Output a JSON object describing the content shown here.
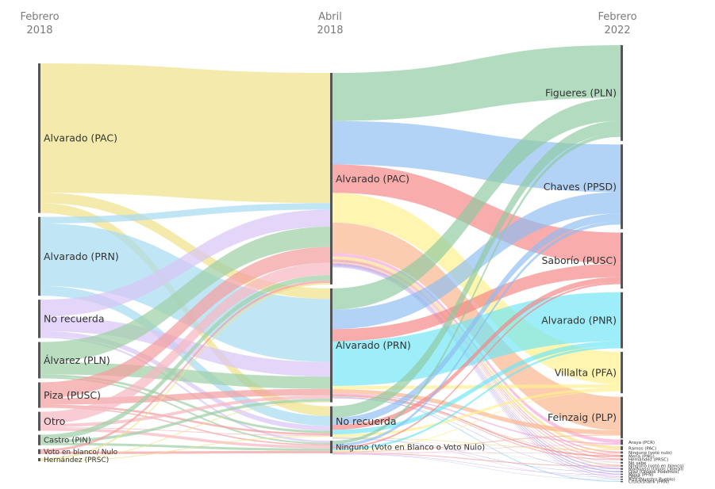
{
  "chart_data": {
    "type": "sankey",
    "title": "",
    "columns": [
      {
        "id": "c0",
        "title_line1": "Febrero",
        "title_line2": "2018"
      },
      {
        "id": "c1",
        "title_line1": "Abril",
        "title_line2": "2018"
      },
      {
        "id": "c2",
        "title_line1": "Febrero",
        "title_line2": "2022"
      }
    ],
    "nodes": [
      {
        "id": "a_pac",
        "col": 0,
        "label": "Alvarado (PAC)",
        "value": 37.0
      },
      {
        "id": "a_prn",
        "col": 0,
        "label": "Alvarado (PRN)",
        "value": 19.5
      },
      {
        "id": "a_norec",
        "col": 0,
        "label": "No recuerda",
        "value": 9.5
      },
      {
        "id": "a_pln",
        "col": 0,
        "label": "Álvarez (PLN)",
        "value": 9.0
      },
      {
        "id": "a_pusc",
        "col": 0,
        "label": "Piza (PUSC)",
        "value": 6.3
      },
      {
        "id": "a_otro",
        "col": 0,
        "label": "Otro",
        "value": 4.7
      },
      {
        "id": "a_pin",
        "col": 0,
        "label": "Castro (PIN)",
        "value": 2.6
      },
      {
        "id": "a_blanco",
        "col": 0,
        "label": "Voto en blanco/ Nulo",
        "value": 1.2
      },
      {
        "id": "a_prsc",
        "col": 0,
        "label": "Hernández (PRSC)",
        "value": 0.8
      },
      {
        "id": "b_pac",
        "col": 1,
        "label": "Alvarado (PAC)",
        "value": 52.0
      },
      {
        "id": "b_prn",
        "col": 1,
        "label": "Alvarado (PRN)",
        "value": 28.0
      },
      {
        "id": "b_norec",
        "col": 1,
        "label": "No recuerda",
        "value": 7.5
      },
      {
        "id": "b_ninguno",
        "col": 1,
        "label": "Ninguno (Voto en Blanco o Voto Nulo)",
        "value": 3.1
      },
      {
        "id": "c_pln",
        "col": 2,
        "label": "Figueres (PLN)",
        "value": 21.5
      },
      {
        "id": "c_ppsd",
        "col": 2,
        "label": "Chaves (PPSD)",
        "value": 19.0
      },
      {
        "id": "c_pusc",
        "col": 2,
        "label": "Saborío (PUSC)",
        "value": 12.6
      },
      {
        "id": "c_pnr",
        "col": 2,
        "label": "Alvarado (PNR)",
        "value": 12.6
      },
      {
        "id": "c_pfa",
        "col": 2,
        "label": "Villalta (PFA)",
        "value": 9.3
      },
      {
        "id": "c_plp",
        "col": 2,
        "label": "Feinzaig (PLP)",
        "value": 9.3
      },
      {
        "id": "c_pcr",
        "col": 2,
        "label": "Araya (PCR)",
        "value": 1.2
      },
      {
        "id": "c_pac",
        "col": 2,
        "label": "Ramos (PAC)",
        "value": 0.9
      },
      {
        "id": "c_nulo",
        "col": 2,
        "label": "Ninguno (votó nulo)",
        "value": 0.5
      },
      {
        "id": "c_png",
        "col": 2,
        "label": "Mena (PNG)",
        "value": 0.5
      },
      {
        "id": "c_prsc",
        "col": 2,
        "label": "Hernández (PRSC)",
        "value": 0.5
      },
      {
        "id": "c_nosabe",
        "col": 2,
        "label": "No sabe",
        "value": 0.4
      },
      {
        "id": "c_blanco",
        "col": 2,
        "label": "Ninguno (votó en blanco)",
        "value": 0.4
      },
      {
        "id": "c_pul",
        "col": 2,
        "label": "Malavassi (Unión Liberal)",
        "value": 0.4
      },
      {
        "id": "c_up",
        "col": 2,
        "label": "Díaz (Unidos Podemos)",
        "value": 0.3
      },
      {
        "id": "c_pfn",
        "col": 2,
        "label": "Moya (PFN)",
        "value": 0.3
      },
      {
        "id": "c_otros",
        "col": 2,
        "label": "Otros",
        "value": 0.3
      },
      {
        "id": "c_pnp",
        "col": 2,
        "label": "Piza (Nuestro Pueblo)",
        "value": 0.2
      },
      {
        "id": "c_prn",
        "col": 2,
        "label": "Cruickshank (PRN)",
        "value": 0.2
      }
    ],
    "links": [
      {
        "source": "a_pac",
        "target": "b_pac",
        "value": 32.0
      },
      {
        "source": "a_pac",
        "target": "b_prn",
        "value": 2.6
      },
      {
        "source": "a_pac",
        "target": "b_norec",
        "value": 2.4
      },
      {
        "source": "a_prn",
        "target": "b_pac",
        "value": 1.6
      },
      {
        "source": "a_prn",
        "target": "b_prn",
        "value": 15.5
      },
      {
        "source": "a_prn",
        "target": "b_norec",
        "value": 2.4
      },
      {
        "source": "a_norec",
        "target": "b_pac",
        "value": 4.2
      },
      {
        "source": "a_norec",
        "target": "b_prn",
        "value": 3.6
      },
      {
        "source": "a_norec",
        "target": "b_norec",
        "value": 1.2
      },
      {
        "source": "a_norec",
        "target": "b_ninguno",
        "value": 0.5
      },
      {
        "source": "a_pln",
        "target": "b_pac",
        "value": 5.0
      },
      {
        "source": "a_pln",
        "target": "b_prn",
        "value": 3.0
      },
      {
        "source": "a_pln",
        "target": "b_norec",
        "value": 0.6
      },
      {
        "source": "a_pln",
        "target": "b_ninguno",
        "value": 0.4
      },
      {
        "source": "a_pusc",
        "target": "b_pac",
        "value": 3.9
      },
      {
        "source": "a_pusc",
        "target": "b_prn",
        "value": 1.6
      },
      {
        "source": "a_pusc",
        "target": "b_norec",
        "value": 0.5
      },
      {
        "source": "a_pusc",
        "target": "b_ninguno",
        "value": 0.3
      },
      {
        "source": "a_otro",
        "target": "b_pac",
        "value": 3.0
      },
      {
        "source": "a_otro",
        "target": "b_prn",
        "value": 0.8
      },
      {
        "source": "a_otro",
        "target": "b_norec",
        "value": 0.2
      },
      {
        "source": "a_otro",
        "target": "b_ninguno",
        "value": 0.7
      },
      {
        "source": "a_pin",
        "target": "b_pac",
        "value": 1.3
      },
      {
        "source": "a_pin",
        "target": "b_prn",
        "value": 0.7
      },
      {
        "source": "a_pin",
        "target": "b_ninguno",
        "value": 0.6
      },
      {
        "source": "a_blanco",
        "target": "b_pac",
        "value": 0.6
      },
      {
        "source": "a_blanco",
        "target": "b_ninguno",
        "value": 0.6
      },
      {
        "source": "a_prsc",
        "target": "b_pac",
        "value": 0.4
      },
      {
        "source": "a_prsc",
        "target": "b_prn",
        "value": 0.2
      },
      {
        "source": "a_prsc",
        "target": "b_norec",
        "value": 0.2
      },
      {
        "source": "b_pac",
        "target": "c_pln",
        "value": 11.8
      },
      {
        "source": "b_pac",
        "target": "c_ppsd",
        "value": 10.7
      },
      {
        "source": "b_pac",
        "target": "c_pusc",
        "value": 7.0
      },
      {
        "source": "b_pac",
        "target": "c_pfa",
        "value": 7.3
      },
      {
        "source": "b_pac",
        "target": "c_plp",
        "value": 7.5
      },
      {
        "source": "b_pac",
        "target": "c_pcr",
        "value": 0.8
      },
      {
        "source": "b_pac",
        "target": "c_pac",
        "value": 0.7
      },
      {
        "source": "b_pac",
        "target": "c_nulo",
        "value": 0.3
      },
      {
        "source": "b_pac",
        "target": "c_png",
        "value": 0.2
      },
      {
        "source": "b_pac",
        "target": "c_prsc",
        "value": 0.2
      },
      {
        "source": "b_pac",
        "target": "c_nosabe",
        "value": 0.2
      },
      {
        "source": "b_pac",
        "target": "c_blanco",
        "value": 0.2
      },
      {
        "source": "b_pac",
        "target": "c_pul",
        "value": 0.2
      },
      {
        "source": "b_pac",
        "target": "c_up",
        "value": 0.2
      },
      {
        "source": "b_pac",
        "target": "c_pfn",
        "value": 0.2
      },
      {
        "source": "b_pac",
        "target": "c_otros",
        "value": 0.2
      },
      {
        "source": "b_pac",
        "target": "c_pnp",
        "value": 0.1
      },
      {
        "source": "b_prn",
        "target": "c_pln",
        "value": 5.2
      },
      {
        "source": "b_prn",
        "target": "c_ppsd",
        "value": 4.8
      },
      {
        "source": "b_prn",
        "target": "c_pusc",
        "value": 3.0
      },
      {
        "source": "b_prn",
        "target": "c_pnr",
        "value": 11.0
      },
      {
        "source": "b_prn",
        "target": "c_pfa",
        "value": 0.8
      },
      {
        "source": "b_prn",
        "target": "c_plp",
        "value": 1.0
      },
      {
        "source": "b_prn",
        "target": "c_pcr",
        "value": 0.3
      },
      {
        "source": "b_prn",
        "target": "c_png",
        "value": 0.3
      },
      {
        "source": "b_prn",
        "target": "c_prsc",
        "value": 0.2
      },
      {
        "source": "b_prn",
        "target": "c_prn",
        "value": 0.2
      },
      {
        "source": "b_prn",
        "target": "c_nulo",
        "value": 0.1
      },
      {
        "source": "b_prn",
        "target": "c_pul",
        "value": 0.1
      },
      {
        "source": "b_norec",
        "target": "c_pln",
        "value": 2.8
      },
      {
        "source": "b_norec",
        "target": "c_ppsd",
        "value": 1.8
      },
      {
        "source": "b_norec",
        "target": "c_pusc",
        "value": 1.2
      },
      {
        "source": "b_norec",
        "target": "c_pnr",
        "value": 1.1
      },
      {
        "source": "b_norec",
        "target": "c_pfa",
        "value": 0.6
      },
      {
        "source": "b_norec",
        "target": "c_nosabe",
        "value": 0.1
      },
      {
        "source": "b_norec",
        "target": "c_pac",
        "value": 0.2
      },
      {
        "source": "b_norec",
        "target": "c_up",
        "value": 0.1
      },
      {
        "source": "b_norec",
        "target": "c_otros",
        "value": 0.1
      },
      {
        "source": "b_ninguno",
        "target": "c_pln",
        "value": 0.8
      },
      {
        "source": "b_ninguno",
        "target": "c_ppsd",
        "value": 0.7
      },
      {
        "source": "b_ninguno",
        "target": "c_pusc",
        "value": 0.4
      },
      {
        "source": "b_ninguno",
        "target": "c_pnr",
        "value": 0.5
      },
      {
        "source": "b_ninguno",
        "target": "c_pfa",
        "value": 0.2
      },
      {
        "source": "b_ninguno",
        "target": "c_plp",
        "value": 0.2
      },
      {
        "source": "b_ninguno",
        "target": "c_nulo",
        "value": 0.1
      },
      {
        "source": "b_ninguno",
        "target": "c_blanco",
        "value": 0.2
      },
      {
        "source": "b_ninguno",
        "target": "c_pfn",
        "value": 0.1
      },
      {
        "source": "b_ninguno",
        "target": "c_pnp",
        "value": 0.1
      },
      {
        "source": "b_ninguno",
        "target": "c_pcr",
        "value": 0.1
      }
    ],
    "colors": {
      "a_pac": "#f0e28a",
      "a_prn": "#a8dcf2",
      "a_norec": "#d8c6f5",
      "a_pln": "#9fd0a8",
      "a_pusc": "#f4a0a0",
      "a_otro": "#f7b8c2",
      "a_pin": "#9fd0a8",
      "a_blanco": "#f4a0a0",
      "a_prsc": "#f0e28a",
      "c_pln": "#8fcaa0",
      "c_ppsd": "#8dbcf2",
      "c_pusc": "#f48484",
      "c_pnr": "#6fe6f4",
      "c_pfa": "#fff08a",
      "c_plp": "#fbb48c",
      "c_pcr": "#f5a6d8",
      "c_pac": "#f8e08a",
      "c_nulo": "#f4a0a0",
      "c_png": "#f48484",
      "c_prsc": "#f49c9c",
      "c_nosabe": "#d6d6d6",
      "c_blanco": "#f4a0a0",
      "c_pul": "#b08ae8",
      "c_up": "#9c9ce6",
      "c_pfn": "#c69ae8",
      "c_otros": "#d0b6ec",
      "c_pnp": "#b8bef0",
      "c_prn": "#8fcdf2"
    }
  }
}
